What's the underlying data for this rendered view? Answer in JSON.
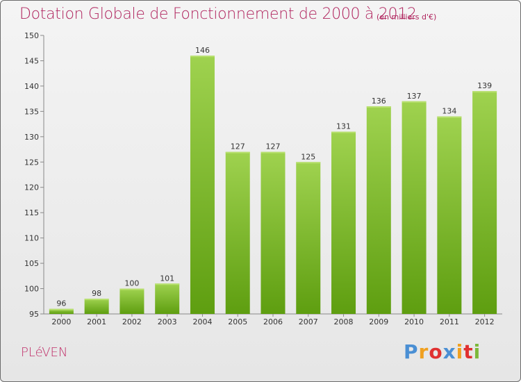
{
  "header": {
    "title": "Dotation Globale de Fonctionnement de 2000 à 2012",
    "unit": "(en milliers d'€)"
  },
  "footer": {
    "commune": "PLéVEN",
    "brand": {
      "letters": [
        "P",
        "r",
        "o",
        "x",
        "i",
        "t",
        "i"
      ],
      "colors": [
        "#4a8fd4",
        "#f0a020",
        "#e03030",
        "#4a8fd4",
        "#f0a020",
        "#e03030",
        "#7cb83a"
      ]
    }
  },
  "colors": {
    "bar_light": "#9fd24f",
    "bar_dark": "#5e9e10",
    "bar_top": "#b8e06f",
    "title": "#b0245e",
    "grid": "#c8c8c8"
  },
  "chart_data": {
    "type": "bar",
    "title": "Dotation Globale de Fonctionnement de 2000 à 2012",
    "subtitle": "(en milliers d'€)",
    "xlabel": "",
    "ylabel": "",
    "categories": [
      "2000",
      "2001",
      "2002",
      "2003",
      "2004",
      "2005",
      "2006",
      "2007",
      "2008",
      "2009",
      "2010",
      "2011",
      "2012"
    ],
    "values": [
      96,
      98,
      100,
      101,
      146,
      127,
      127,
      125,
      131,
      136,
      137,
      134,
      139
    ],
    "ylim": [
      95,
      150
    ],
    "yticks": [
      95,
      100,
      105,
      110,
      115,
      120,
      125,
      130,
      135,
      140,
      145,
      150
    ],
    "grid": false,
    "legend": "none"
  }
}
